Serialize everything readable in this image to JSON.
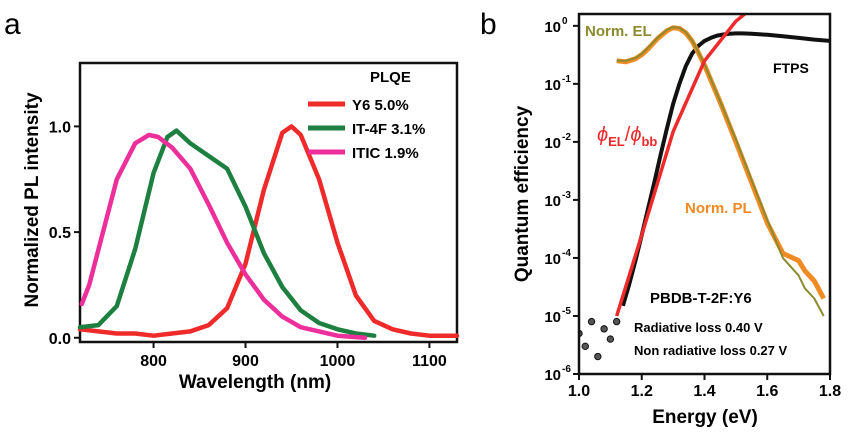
{
  "colors": {
    "y6": "#ee2a2a",
    "it4f": "#1e8040",
    "itic": "#ec2f9a",
    "axis": "#111111",
    "el": "#8b8b2e",
    "pl": "#f08a24",
    "ftps": "#111111",
    "ratio": "#ee2a2a"
  },
  "chart_data": [
    {
      "type": "line",
      "panel_label": "a",
      "xlabel": "Wavelength (nm)",
      "ylabel": "Normalized PL intensity",
      "xlim": [
        720,
        1130
      ],
      "ylim": [
        -0.02,
        1.3
      ],
      "xticks": [
        800,
        900,
        1000,
        1100
      ],
      "yticks": [
        0.0,
        0.5,
        1.0
      ],
      "ytick_labels": [
        "0.0",
        "0.5",
        "1.0"
      ],
      "legend_title": "PLQE",
      "legend_position": "top-right",
      "series": [
        {
          "name": "Y6 5.0%",
          "x": [
            720,
            740,
            760,
            780,
            800,
            820,
            840,
            860,
            880,
            900,
            920,
            940,
            950,
            960,
            980,
            1000,
            1020,
            1040,
            1060,
            1080,
            1100,
            1130
          ],
          "y": [
            0.04,
            0.03,
            0.02,
            0.02,
            0.01,
            0.02,
            0.03,
            0.06,
            0.14,
            0.35,
            0.7,
            0.97,
            1.0,
            0.96,
            0.75,
            0.45,
            0.2,
            0.08,
            0.04,
            0.02,
            0.01,
            0.01
          ]
        },
        {
          "name": "IT-4F 3.1%",
          "x": [
            720,
            740,
            760,
            780,
            800,
            815,
            825,
            840,
            860,
            880,
            900,
            920,
            940,
            960,
            980,
            1000,
            1020,
            1040
          ],
          "y": [
            0.05,
            0.06,
            0.15,
            0.42,
            0.78,
            0.95,
            0.98,
            0.92,
            0.86,
            0.8,
            0.62,
            0.4,
            0.24,
            0.13,
            0.07,
            0.04,
            0.02,
            0.01
          ]
        },
        {
          "name": "ITIC 1.9%",
          "x": [
            722,
            730,
            745,
            760,
            780,
            795,
            805,
            820,
            840,
            860,
            880,
            900,
            920,
            940,
            960,
            980,
            1000,
            1030
          ],
          "y": [
            0.16,
            0.25,
            0.5,
            0.75,
            0.92,
            0.96,
            0.95,
            0.9,
            0.8,
            0.63,
            0.45,
            0.3,
            0.18,
            0.1,
            0.05,
            0.03,
            0.01,
            0.0
          ]
        }
      ]
    },
    {
      "type": "line",
      "panel_label": "b",
      "xlabel": "Energy (eV)",
      "ylabel": "Quantum efficiency",
      "xlim": [
        1.0,
        1.8
      ],
      "ylog": true,
      "ylim": [
        1e-06,
        1.6
      ],
      "xticks": [
        1.0,
        1.2,
        1.4,
        1.6,
        1.8
      ],
      "xtick_labels": [
        "1.0",
        "1.2",
        "1.4",
        "1.6",
        "1.8"
      ],
      "yticks": [
        1e-06,
        1e-05,
        0.0001,
        0.001,
        0.01,
        0.1,
        1
      ],
      "ytick_base": [
        "10",
        "10",
        "10",
        "10",
        "10",
        "10",
        "10"
      ],
      "ytick_exp": [
        "-6",
        "-5",
        "-4",
        "-3",
        "-2",
        "-1",
        "0"
      ],
      "annotations": {
        "ratio_phi": "ϕ",
        "ratio_el": "EL",
        "ratio_slash": "/",
        "ratio_bb": "bb",
        "sample": "PBDB-T-2F:Y6",
        "radiative_loss": "Radiative loss 0.40 V",
        "nonradiative_loss": "Non radiative loss 0.27 V"
      },
      "series": [
        {
          "name": "Norm. EL",
          "x": [
            1.12,
            1.15,
            1.18,
            1.2,
            1.22,
            1.25,
            1.28,
            1.3,
            1.32,
            1.34,
            1.36,
            1.38,
            1.4,
            1.45,
            1.5,
            1.55,
            1.6,
            1.65,
            1.7,
            1.72,
            1.75,
            1.78
          ],
          "y": [
            0.25,
            0.25,
            0.28,
            0.33,
            0.42,
            0.62,
            0.85,
            0.95,
            0.92,
            0.78,
            0.56,
            0.36,
            0.22,
            0.05,
            0.011,
            0.0022,
            0.00045,
            0.0001,
            5e-05,
            3e-05,
            2e-05,
            1e-05
          ]
        },
        {
          "name": "Norm. PL",
          "x": [
            1.12,
            1.15,
            1.18,
            1.2,
            1.22,
            1.25,
            1.28,
            1.3,
            1.32,
            1.34,
            1.36,
            1.38,
            1.4,
            1.45,
            1.5,
            1.55,
            1.6,
            1.65,
            1.7,
            1.72,
            1.75,
            1.78
          ],
          "y": [
            0.25,
            0.24,
            0.27,
            0.32,
            0.4,
            0.6,
            0.82,
            0.93,
            0.9,
            0.76,
            0.55,
            0.35,
            0.21,
            0.048,
            0.01,
            0.002,
            0.0004,
            0.00012,
            9e-05,
            6e-05,
            4e-05,
            2e-05
          ]
        },
        {
          "name": "FTPS",
          "x": [
            1.0,
            1.02,
            1.04,
            1.06,
            1.08,
            1.1,
            1.12,
            1.14,
            1.16,
            1.18,
            1.2,
            1.22,
            1.24,
            1.26,
            1.28,
            1.3,
            1.32,
            1.34,
            1.36,
            1.38,
            1.4,
            1.42,
            1.44,
            1.46,
            1.48,
            1.5,
            1.52,
            1.55,
            1.6,
            1.65,
            1.7,
            1.75,
            1.8
          ],
          "y": [
            5e-06,
            3e-06,
            8e-06,
            2e-06,
            6e-06,
            4e-06,
            8e-06,
            1.5e-05,
            3.5e-05,
            9e-05,
            0.00025,
            0.0007,
            0.002,
            0.006,
            0.017,
            0.045,
            0.1,
            0.2,
            0.33,
            0.45,
            0.55,
            0.62,
            0.68,
            0.71,
            0.73,
            0.74,
            0.74,
            0.73,
            0.7,
            0.66,
            0.62,
            0.58,
            0.55
          ]
        },
        {
          "name": "ϕEL/ϕbb",
          "x": [
            1.12,
            1.2,
            1.3,
            1.4,
            1.5,
            1.55
          ],
          "y": [
            1e-05,
            0.00025,
            0.015,
            0.25,
            1.2,
            2.0
          ]
        }
      ]
    }
  ]
}
